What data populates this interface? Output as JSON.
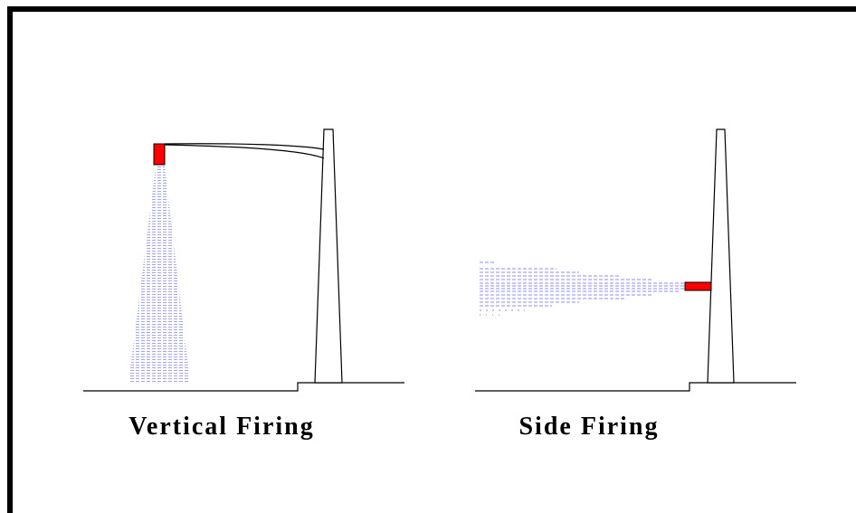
{
  "captions": {
    "vertical": "Vertical Firing",
    "side": "Side Firing"
  }
}
